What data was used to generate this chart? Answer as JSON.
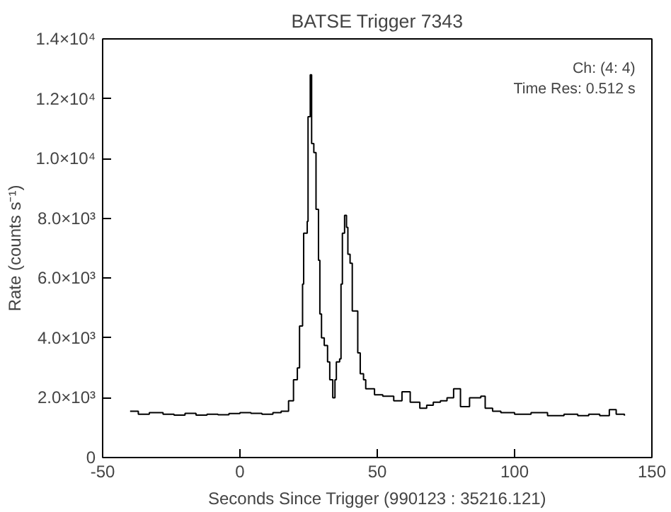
{
  "chart_data": {
    "type": "step",
    "title": "BATSE Trigger 7343",
    "xlabel": "Seconds Since Trigger (990123 : 35216.121)",
    "ylabel": "Rate (counts s⁻¹)",
    "annotations": [
      "Ch: (4: 4)",
      "Time Res: 0.512 s"
    ],
    "xlim": [
      -50,
      150
    ],
    "ylim": [
      0,
      14000
    ],
    "xticks": [
      -50,
      0,
      50,
      100,
      150
    ],
    "yticks": [
      0,
      {
        "value": 2000,
        "label": "2.0×10³"
      },
      {
        "value": 4000,
        "label": "4.0×10³"
      },
      {
        "value": 6000,
        "label": "6.0×10³"
      },
      {
        "value": 8000,
        "label": "8.0×10³"
      },
      {
        "value": 10000,
        "label": "1.0×10⁴"
      },
      {
        "value": 12000,
        "label": "1.2×10⁴"
      },
      {
        "value": 14000,
        "label": "1.4×10⁴"
      }
    ],
    "grid": false,
    "series": [
      {
        "color": "#000000",
        "x": [
          -40,
          -37,
          -33,
          -28,
          -24,
          -20,
          -16,
          -12,
          -8,
          -4,
          0,
          4,
          8,
          12,
          15,
          17.7,
          19.5,
          20.9,
          21.7,
          22.8,
          23.2,
          24.5,
          24.8,
          25.6,
          26.1,
          26.9,
          27.7,
          28.6,
          29.1,
          29.7,
          30.7,
          31.9,
          32.7,
          33.8,
          34.6,
          35.1,
          36.3,
          36.8,
          37.3,
          38.1,
          38.8,
          39.3,
          40.1,
          40.9,
          41.7,
          42.9,
          43.8,
          45.0,
          45.8,
          49,
          52,
          56,
          59,
          62,
          65.5,
          68,
          70.4,
          73,
          75.4,
          77.8,
          80.3,
          83.6,
          87.7,
          89.3,
          92,
          95,
          100,
          106,
          112,
          118,
          123,
          127,
          131,
          134.5,
          137,
          140
        ],
        "values": [
          1550,
          1450,
          1500,
          1450,
          1420,
          1480,
          1420,
          1450,
          1430,
          1470,
          1500,
          1480,
          1450,
          1500,
          1550,
          1900,
          2600,
          3000,
          4400,
          5800,
          7500,
          7900,
          11400,
          12800,
          10500,
          10200,
          8300,
          6600,
          4800,
          4000,
          3750,
          3200,
          2600,
          2000,
          2600,
          3200,
          3300,
          5800,
          7500,
          8100,
          7700,
          6800,
          6500,
          4900,
          4900,
          3500,
          2800,
          2600,
          2300,
          2100,
          2050,
          1900,
          2200,
          1850,
          1650,
          1750,
          1850,
          1900,
          2000,
          2300,
          1700,
          2000,
          2050,
          1650,
          1550,
          1500,
          1450,
          1500,
          1400,
          1450,
          1400,
          1450,
          1400,
          1600,
          1450,
          1400
        ]
      }
    ]
  }
}
